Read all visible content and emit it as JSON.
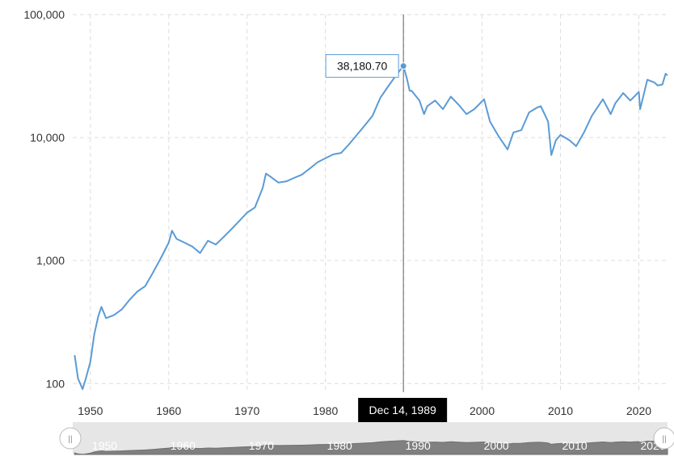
{
  "chart_data": {
    "type": "line",
    "title": "",
    "xlabel": "",
    "ylabel": "",
    "y_scale": "log",
    "ylim": [
      85,
      100000
    ],
    "xlim": [
      "1947-10-01",
      "2023-09-01"
    ],
    "y_ticks": [
      {
        "value": 100,
        "label": "100"
      },
      {
        "value": 1000,
        "label": "1,000"
      },
      {
        "value": 10000,
        "label": "10,000"
      },
      {
        "value": 100000,
        "label": "100,000"
      }
    ],
    "x_ticks": [
      {
        "value": "1950-01-01",
        "label": "1950"
      },
      {
        "value": "1960-01-01",
        "label": "1960"
      },
      {
        "value": "1970-01-01",
        "label": "1970"
      },
      {
        "value": "1980-01-01",
        "label": "1980"
      },
      {
        "value": "1990-01-01",
        "label": "1990"
      },
      {
        "value": "2000-01-01",
        "label": "2000"
      },
      {
        "value": "2010-01-01",
        "label": "2010"
      },
      {
        "value": "2020-01-01",
        "label": "2020"
      }
    ],
    "grid": true,
    "series": [
      {
        "color": "#5b9bd5",
        "points": [
          [
            "1948-01-01",
            170
          ],
          [
            "1948-06-01",
            110
          ],
          [
            "1949-01-01",
            90
          ],
          [
            "1949-06-01",
            110
          ],
          [
            "1950-01-01",
            150
          ],
          [
            "1950-07-01",
            250
          ],
          [
            "1951-01-01",
            350
          ],
          [
            "1951-06-01",
            420
          ],
          [
            "1952-01-01",
            340
          ],
          [
            "1953-01-01",
            360
          ],
          [
            "1954-01-01",
            400
          ],
          [
            "1955-01-01",
            480
          ],
          [
            "1956-01-01",
            560
          ],
          [
            "1957-01-01",
            620
          ],
          [
            "1958-01-01",
            800
          ],
          [
            "1959-01-01",
            1050
          ],
          [
            "1960-01-01",
            1400
          ],
          [
            "1960-06-01",
            1750
          ],
          [
            "1961-01-01",
            1500
          ],
          [
            "1962-01-01",
            1400
          ],
          [
            "1963-01-01",
            1300
          ],
          [
            "1964-01-01",
            1150
          ],
          [
            "1965-01-01",
            1450
          ],
          [
            "1966-01-01",
            1350
          ],
          [
            "1967-01-01",
            1550
          ],
          [
            "1968-01-01",
            1800
          ],
          [
            "1969-01-01",
            2100
          ],
          [
            "1970-01-01",
            2450
          ],
          [
            "1971-01-01",
            2700
          ],
          [
            "1972-01-01",
            3900
          ],
          [
            "1972-06-01",
            5100
          ],
          [
            "1973-01-01",
            4800
          ],
          [
            "1974-01-01",
            4300
          ],
          [
            "1975-01-01",
            4400
          ],
          [
            "1976-01-01",
            4700
          ],
          [
            "1977-01-01",
            5000
          ],
          [
            "1978-01-01",
            5600
          ],
          [
            "1979-01-01",
            6300
          ],
          [
            "1980-01-01",
            6800
          ],
          [
            "1981-01-01",
            7300
          ],
          [
            "1982-01-01",
            7500
          ],
          [
            "1983-01-01",
            8800
          ],
          [
            "1984-01-01",
            10500
          ],
          [
            "1985-01-01",
            12500
          ],
          [
            "1986-01-01",
            15000
          ],
          [
            "1987-01-01",
            21000
          ],
          [
            "1988-01-01",
            26000
          ],
          [
            "1989-01-01",
            32000
          ],
          [
            "1989-12-14",
            38180.7
          ],
          [
            "1990-06-01",
            30000
          ],
          [
            "1990-10-01",
            24000
          ],
          [
            "1991-01-01",
            24000
          ],
          [
            "1992-01-01",
            20000
          ],
          [
            "1992-08-01",
            15500
          ],
          [
            "1993-01-01",
            18000
          ],
          [
            "1994-01-01",
            20000
          ],
          [
            "1995-01-01",
            17000
          ],
          [
            "1996-01-01",
            21500
          ],
          [
            "1997-01-01",
            18500
          ],
          [
            "1998-01-01",
            15500
          ],
          [
            "1999-01-01",
            17000
          ],
          [
            "2000-04-01",
            20500
          ],
          [
            "2001-01-01",
            13500
          ],
          [
            "2002-01-01",
            10500
          ],
          [
            "2003-04-01",
            8000
          ],
          [
            "2004-01-01",
            11000
          ],
          [
            "2005-01-01",
            11500
          ],
          [
            "2006-01-01",
            16000
          ],
          [
            "2007-01-01",
            17500
          ],
          [
            "2007-07-01",
            18000
          ],
          [
            "2008-06-01",
            13500
          ],
          [
            "2008-11-01",
            7200
          ],
          [
            "2009-06-01",
            9500
          ],
          [
            "2010-01-01",
            10500
          ],
          [
            "2011-03-01",
            9500
          ],
          [
            "2012-01-01",
            8500
          ],
          [
            "2013-01-01",
            11000
          ],
          [
            "2014-01-01",
            15000
          ],
          [
            "2015-06-01",
            20500
          ],
          [
            "2016-06-01",
            15500
          ],
          [
            "2017-01-01",
            19000
          ],
          [
            "2018-01-01",
            23000
          ],
          [
            "2018-12-01",
            20000
          ],
          [
            "2019-06-01",
            21500
          ],
          [
            "2020-01-01",
            23500
          ],
          [
            "2020-03-01",
            17000
          ],
          [
            "2021-02-01",
            29500
          ],
          [
            "2022-01-01",
            28000
          ],
          [
            "2022-06-01",
            26500
          ],
          [
            "2023-01-01",
            27000
          ],
          [
            "2023-06-01",
            33000
          ],
          [
            "2023-09-01",
            32000
          ]
        ]
      }
    ],
    "tooltip": {
      "date": "1989-12-14",
      "value": 38180.7,
      "value_label": "38,180.70",
      "date_label": "Dec 14, 1989"
    }
  },
  "navigator": {
    "ticks": [
      "1950",
      "1960",
      "1970",
      "1980",
      "1990",
      "2000",
      "2010",
      "2020"
    ],
    "left_handle_label": "||",
    "right_handle_label": "||"
  },
  "colors": {
    "line": "#5b9bd5",
    "grid": "#dddddd",
    "crosshair": "#666666",
    "crosshair_label_bg": "#000000",
    "navigator_bg": "#e6e6e6",
    "navigator_fill": "#808080"
  }
}
